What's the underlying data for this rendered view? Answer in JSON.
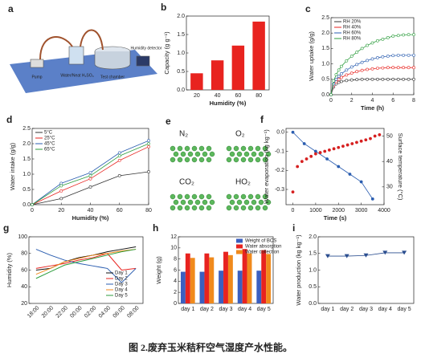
{
  "caption": "图 2.废弃玉米秸秆空气湿度产水性能。",
  "panel_a": {
    "letter": "a",
    "labels": [
      "Pump",
      "Water/Neat H₂SO₄",
      "Test chamber",
      "Humidity detector"
    ]
  },
  "panel_e": {
    "letter": "e",
    "labels": [
      "N₂",
      "O₂",
      "CO₂",
      "HO₂"
    ]
  },
  "chart_data": [
    {
      "letter": "b",
      "type": "bar",
      "ylabel": "Capacity (g g⁻¹)",
      "xlabel": "Humidity (%)",
      "categories": [
        "20",
        "40",
        "60",
        "80"
      ],
      "values": [
        0.45,
        0.8,
        1.2,
        1.85
      ],
      "color": "#e8231f",
      "ylim": [
        0,
        2
      ],
      "yticks": [
        {
          "value": 0,
          "label": "0.0"
        },
        0.5,
        {
          "value": 1,
          "label": "1.0"
        },
        1.5,
        {
          "value": 2,
          "label": "2.0"
        }
      ]
    },
    {
      "letter": "c",
      "type": "line",
      "ylabel": "Water uptake (g/g)",
      "xlabel": "Time (h)",
      "markers": "open",
      "legend": "upper left",
      "x": [
        0,
        0.25,
        0.5,
        0.75,
        1,
        1.5,
        2,
        2.5,
        3,
        3.5,
        4,
        4.5,
        5,
        5.5,
        6,
        6.5,
        7,
        7.5,
        8
      ],
      "xlim": [
        0,
        8
      ],
      "xticks": [
        0,
        2,
        4,
        6,
        8
      ],
      "ylim": [
        0,
        2.5
      ],
      "yticks": [
        {
          "value": 0,
          "label": "0.0"
        },
        0.5,
        {
          "value": 1,
          "label": "1.0"
        },
        1.5,
        {
          "value": 2,
          "label": "2.0"
        },
        2.5
      ],
      "series": [
        {
          "name": "RH 20%",
          "color": "#333333",
          "values": [
            0,
            0.25,
            0.35,
            0.4,
            0.43,
            0.46,
            0.48,
            0.49,
            0.5,
            0.5,
            0.5,
            0.5,
            0.5,
            0.5,
            0.5,
            0.5,
            0.5,
            0.5,
            0.5
          ]
        },
        {
          "name": "RH 40%",
          "color": "#e8231f",
          "values": [
            0,
            0.3,
            0.42,
            0.5,
            0.56,
            0.64,
            0.7,
            0.75,
            0.79,
            0.82,
            0.84,
            0.86,
            0.87,
            0.88,
            0.88,
            0.88,
            0.88,
            0.88,
            0.88
          ]
        },
        {
          "name": "RH 60%",
          "color": "#2a5db0",
          "values": [
            0,
            0.35,
            0.5,
            0.6,
            0.68,
            0.8,
            0.9,
            0.98,
            1.05,
            1.11,
            1.16,
            1.2,
            1.23,
            1.25,
            1.27,
            1.28,
            1.28,
            1.28,
            1.28
          ]
        },
        {
          "name": "RH 80%",
          "color": "#2e9e3e",
          "values": [
            0,
            0.45,
            0.65,
            0.8,
            0.92,
            1.1,
            1.25,
            1.38,
            1.5,
            1.6,
            1.68,
            1.75,
            1.8,
            1.85,
            1.9,
            1.92,
            1.94,
            1.95,
            1.95
          ]
        }
      ]
    },
    {
      "letter": "d",
      "type": "line",
      "ylabel": "Water intake (g/g)",
      "xlabel": "Humidity (%)",
      "markers": "open",
      "legend": "upper left",
      "x": [
        0,
        20,
        40,
        60,
        80
      ],
      "xlim": [
        0,
        80
      ],
      "xticks": [
        0,
        20,
        40,
        60,
        80
      ],
      "ylim": [
        0,
        2.5
      ],
      "yticks": [
        {
          "value": 0,
          "label": "0.0"
        },
        0.5,
        {
          "value": 1,
          "label": "1.0"
        },
        1.5,
        {
          "value": 2,
          "label": "2.0"
        },
        2.5
      ],
      "series": [
        {
          "name": "5°C",
          "color": "#333333",
          "values": [
            0,
            0.2,
            0.58,
            0.95,
            1.08
          ]
        },
        {
          "name": "25°C",
          "color": "#e8231f",
          "values": [
            0,
            0.45,
            0.85,
            1.45,
            1.9
          ]
        },
        {
          "name": "45°C",
          "color": "#2a5db0",
          "values": [
            0,
            0.7,
            1.05,
            1.7,
            2.1
          ]
        },
        {
          "name": "65°C",
          "color": "#2e9e3e",
          "values": [
            0,
            0.62,
            0.95,
            1.6,
            2.0
          ]
        }
      ]
    },
    {
      "letter": "f",
      "type": "line",
      "ylabel": "Water evaporation (kg kg⁻¹)",
      "y2label": "Surface temperature (°C)",
      "xlabel": "Time (s)",
      "markers": "filled",
      "xlim": [
        -300,
        4000
      ],
      "xticks": [
        0,
        1000,
        2000,
        3000,
        4000
      ],
      "ylim": [
        -0.38,
        0.02
      ],
      "yticks": [
        -0.3,
        -0.2,
        -0.1,
        {
          "value": 0,
          "label": "0.0"
        }
      ],
      "y2lim": [
        23,
        53
      ],
      "y2ticks": [
        30,
        40,
        50
      ],
      "series": [
        {
          "name": "Water evaporation",
          "color": "#2a5db0",
          "x": [
            0,
            500,
            1000,
            1500,
            2000,
            2500,
            3000,
            3500
          ],
          "values": [
            0,
            -0.06,
            -0.1,
            -0.14,
            -0.18,
            -0.22,
            -0.26,
            -0.35
          ]
        },
        {
          "name": "Surface temperature",
          "color": "#d62020",
          "axis": "y2",
          "x": [
            0,
            200,
            400,
            600,
            800,
            1000,
            1200,
            1400,
            1600,
            1800,
            2000,
            2200,
            2400,
            2600,
            2800,
            3000,
            3200,
            3400,
            3600,
            3800
          ],
          "values": [
            28,
            38,
            40,
            41,
            42,
            43,
            43.5,
            44,
            44.5,
            45,
            45.5,
            46,
            46.5,
            47,
            47.5,
            48,
            48.5,
            49,
            50,
            50.5
          ]
        }
      ]
    },
    {
      "letter": "g",
      "type": "line",
      "ylabel": "Humidity (%)",
      "markers": "none",
      "legend": "lower right",
      "categories": [
        "18:00",
        "20:00",
        "22:00",
        "00:00",
        "02:00",
        "04:00",
        "06:00",
        "08:00"
      ],
      "ylim": [
        20,
        100
      ],
      "yticks": [
        20,
        40,
        60,
        80,
        100
      ],
      "series": [
        {
          "name": "Day 1",
          "color": "#111111",
          "values": [
            60,
            62,
            70,
            75,
            78,
            82,
            85,
            88
          ]
        },
        {
          "name": "Day 2",
          "color": "#e8231f",
          "values": [
            62,
            65,
            68,
            72,
            75,
            80,
            60,
            62
          ]
        },
        {
          "name": "Day 3",
          "color": "#2a5db0",
          "values": [
            85,
            78,
            72,
            68,
            65,
            62,
            45,
            62
          ]
        },
        {
          "name": "Day 4",
          "color": "#f08a1c",
          "values": [
            55,
            62,
            70,
            74,
            78,
            80,
            83,
            85
          ]
        },
        {
          "name": "Day 5",
          "color": "#2e9e3e",
          "values": [
            50,
            58,
            66,
            70,
            74,
            78,
            82,
            85
          ]
        }
      ]
    },
    {
      "letter": "h",
      "type": "bar",
      "ylabel": "Weight (g)",
      "legend": "upper right",
      "categories": [
        "day 1",
        "day 2",
        "day 3",
        "day 4",
        "day 5"
      ],
      "ylim": [
        0,
        12
      ],
      "yticks": [
        0,
        2,
        4,
        6,
        8,
        10,
        12
      ],
      "series": [
        {
          "name": "Weight of BCS",
          "color": "#3b5fc0",
          "values": [
            5.7,
            5.7,
            5.9,
            5.9,
            5.9
          ]
        },
        {
          "name": "Water absorption",
          "color": "#e8231f",
          "values": [
            9,
            9,
            9.3,
            9.8,
            9.6
          ]
        },
        {
          "name": "Water collection",
          "color": "#f08a1c",
          "values": [
            8.2,
            8.3,
            8.7,
            9,
            8.9
          ]
        }
      ]
    },
    {
      "letter": "i",
      "type": "line",
      "ylabel": "Water production (kg kg⁻¹)",
      "markers": "triangle",
      "categories": [
        "day 1",
        "day 2",
        "day 3",
        "day 4",
        "day 5"
      ],
      "ylim": [
        0,
        2
      ],
      "yticks": [
        {
          "value": 0,
          "label": "0.0"
        },
        0.5,
        {
          "value": 1,
          "label": "1.0"
        },
        1.5,
        {
          "value": 2,
          "label": "2.0"
        }
      ],
      "series": [
        {
          "name": "Water production",
          "color": "#2a4d8f",
          "values": [
            1.42,
            1.42,
            1.44,
            1.52,
            1.52
          ]
        }
      ]
    }
  ]
}
